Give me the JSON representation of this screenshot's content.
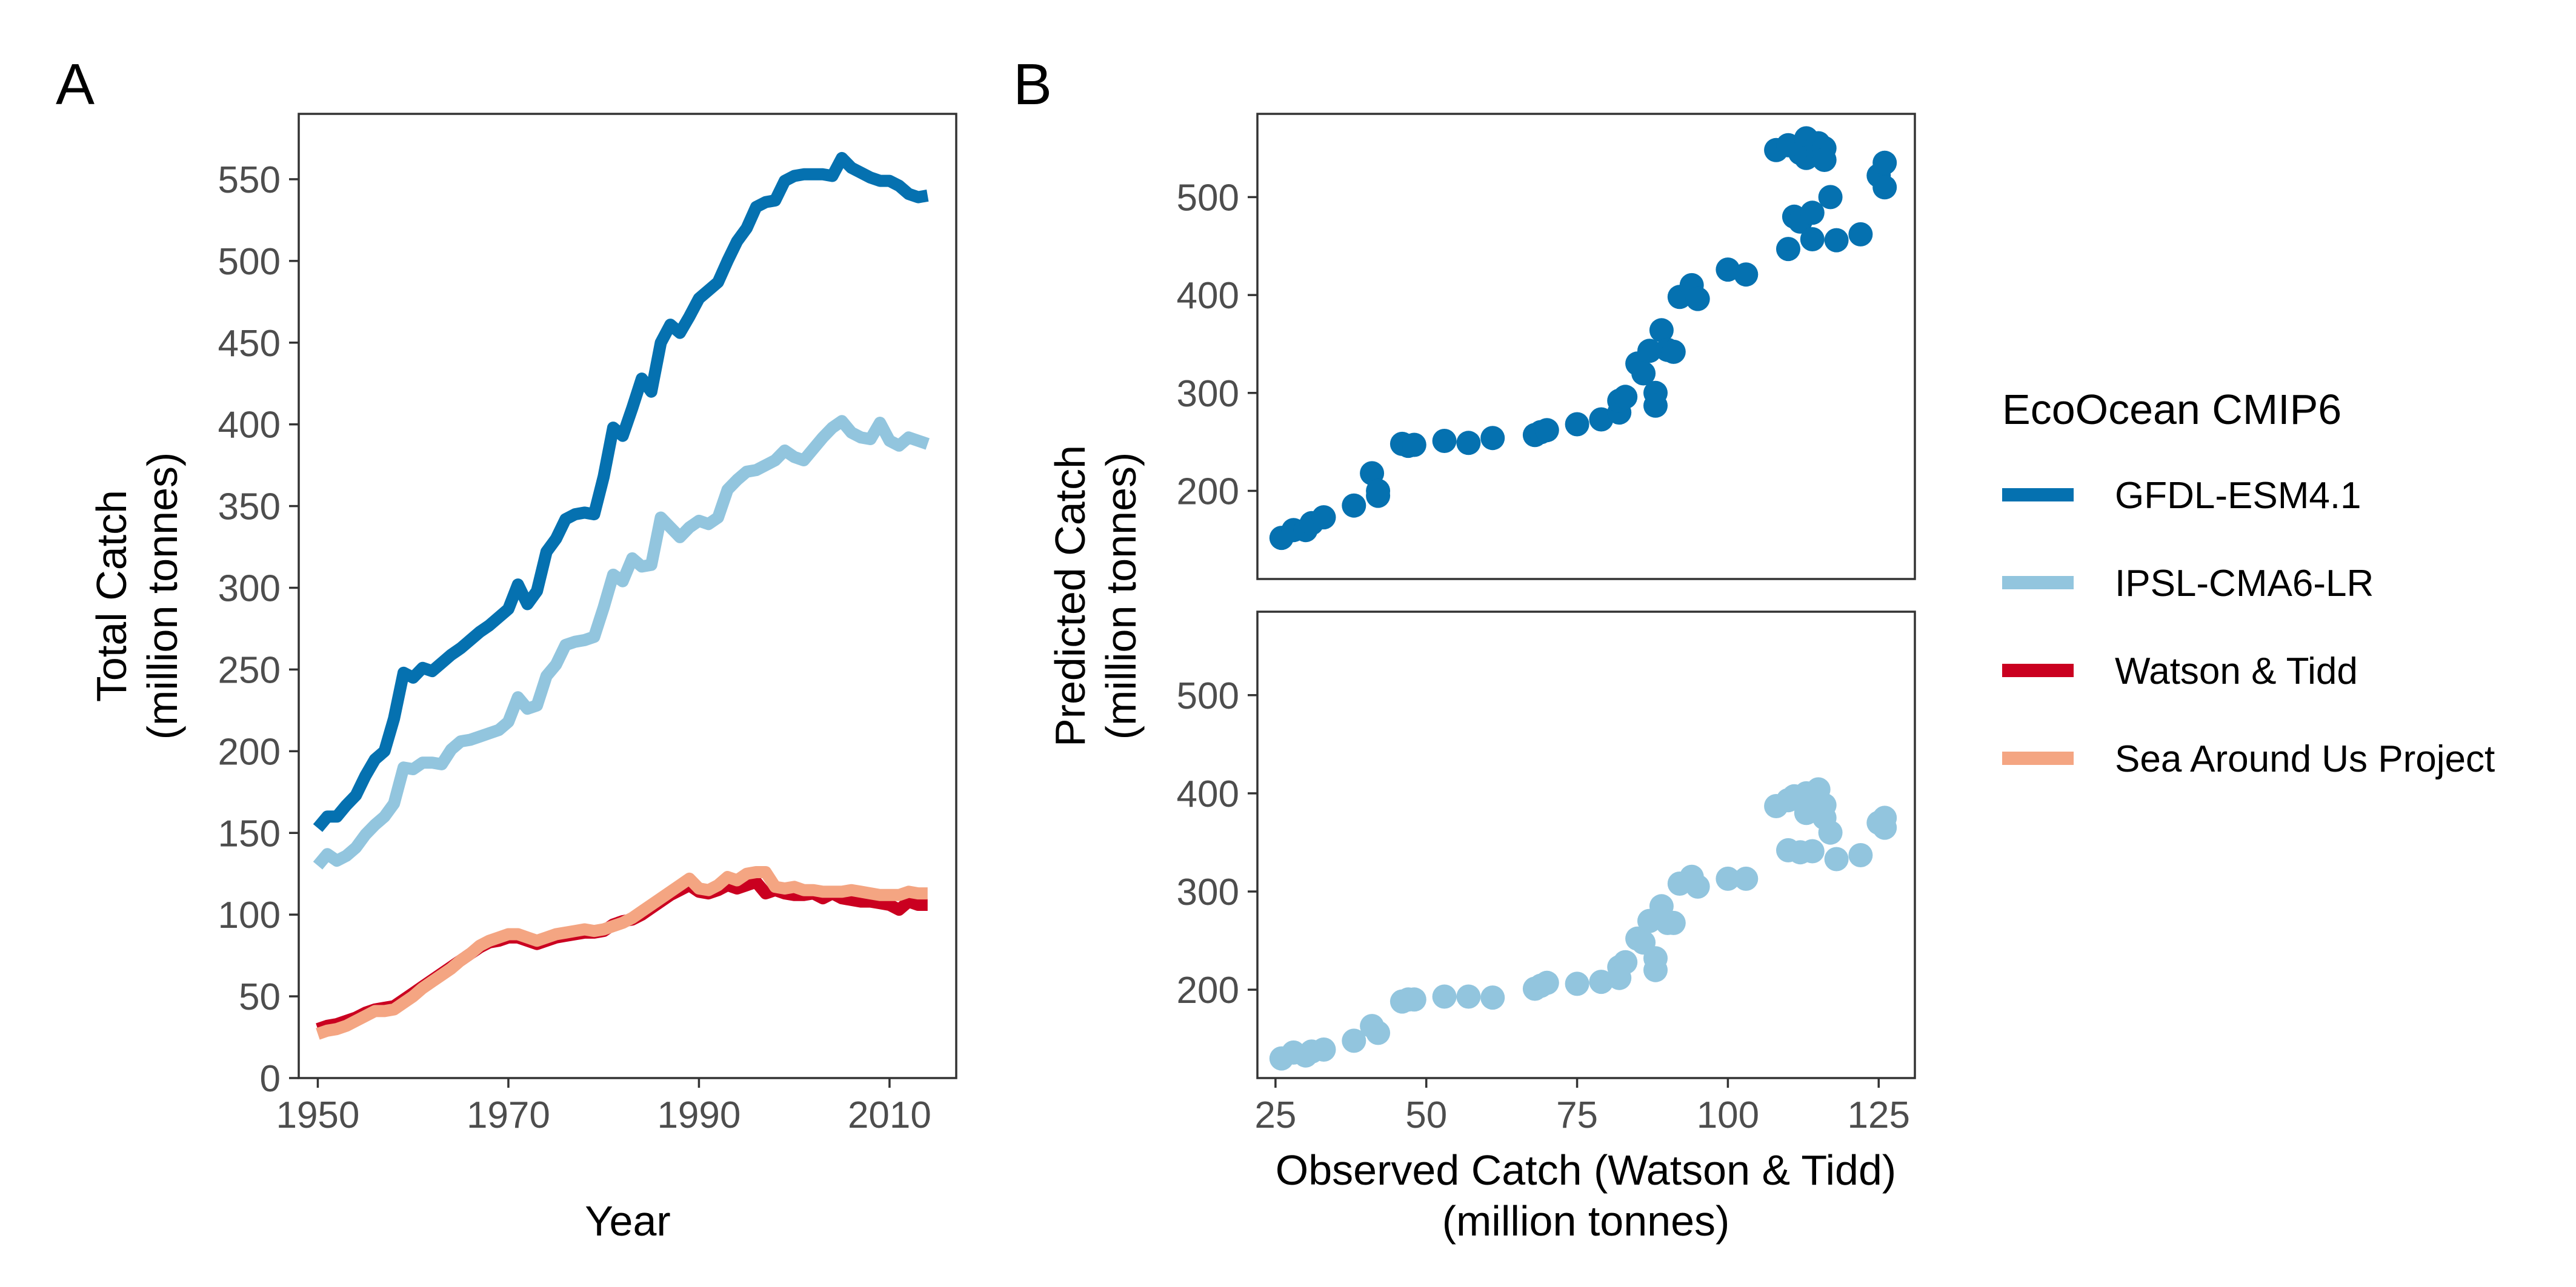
{
  "figure": {
    "panel_a_tag": "A",
    "panel_b_tag": "B"
  },
  "legend": {
    "title": "EcoOcean CMIP6",
    "items": [
      {
        "label": "GFDL-ESM4.1",
        "color": "#0571b0"
      },
      {
        "label": "IPSL-CMA6-LR",
        "color": "#92c5de"
      },
      {
        "label": "Watson & Tidd",
        "color": "#ca0020"
      },
      {
        "label": "Sea Around Us Project",
        "color": "#f4a582"
      }
    ]
  },
  "chart_data": [
    {
      "type": "line",
      "panel": "A",
      "xlabel": "Year",
      "ylabel": "Total Catch",
      "ylabel_line2": "(million tonnes)",
      "xlim": [
        1948,
        2017
      ],
      "ylim": [
        0,
        590
      ],
      "xticks": [
        1950,
        1970,
        1990,
        2010
      ],
      "yticks": [
        0,
        50,
        100,
        150,
        200,
        250,
        300,
        350,
        400,
        450,
        500,
        550
      ],
      "x": [
        1950,
        1951,
        1952,
        1953,
        1954,
        1955,
        1956,
        1957,
        1958,
        1959,
        1960,
        1961,
        1962,
        1963,
        1964,
        1965,
        1966,
        1967,
        1968,
        1969,
        1970,
        1971,
        1972,
        1973,
        1974,
        1975,
        1976,
        1977,
        1978,
        1979,
        1980,
        1981,
        1982,
        1983,
        1984,
        1985,
        1986,
        1987,
        1988,
        1989,
        1990,
        1991,
        1992,
        1993,
        1994,
        1995,
        1996,
        1997,
        1998,
        1999,
        2000,
        2001,
        2002,
        2003,
        2004,
        2005,
        2006,
        2007,
        2008,
        2009,
        2010,
        2011,
        2012,
        2013,
        2014
      ],
      "series": [
        {
          "name": "GFDL-ESM4.1",
          "color": "#0571b0",
          "values": [
            153,
            160,
            160,
            167,
            173,
            185,
            195,
            200,
            220,
            248,
            245,
            251,
            249,
            254,
            259,
            263,
            268,
            273,
            277,
            282,
            287,
            302,
            290,
            298,
            322,
            330,
            342,
            345,
            346,
            345,
            368,
            398,
            393,
            410,
            428,
            420,
            450,
            461,
            456,
            466,
            477,
            482,
            487,
            500,
            512,
            520,
            533,
            536,
            537,
            549,
            552,
            553,
            553,
            553,
            552,
            563,
            557,
            554,
            551,
            549,
            549,
            546,
            541,
            539,
            540
          ]
        },
        {
          "name": "IPSL-CMA6-LR",
          "color": "#92c5de",
          "values": [
            130,
            137,
            133,
            136,
            141,
            149,
            155,
            160,
            168,
            190,
            189,
            193,
            193,
            192,
            201,
            206,
            207,
            209,
            211,
            213,
            218,
            233,
            226,
            228,
            246,
            253,
            265,
            267,
            268,
            270,
            288,
            308,
            304,
            318,
            313,
            314,
            343,
            337,
            331,
            337,
            341,
            339,
            343,
            360,
            366,
            371,
            372,
            375,
            378,
            384,
            380,
            378,
            385,
            392,
            398,
            402,
            395,
            392,
            391,
            401,
            390,
            387,
            392,
            390,
            388
          ]
        },
        {
          "name": "Watson & Tidd",
          "color": "#ca0020",
          "values": [
            30,
            32,
            33,
            35,
            37,
            40,
            42,
            43,
            44,
            48,
            52,
            56,
            60,
            64,
            68,
            72,
            76,
            80,
            83,
            84,
            86,
            86,
            84,
            82,
            84,
            86,
            87,
            88,
            89,
            89,
            90,
            94,
            96,
            97,
            100,
            104,
            108,
            112,
            115,
            118,
            114,
            113,
            115,
            118,
            116,
            118,
            120,
            113,
            115,
            113,
            112,
            112,
            113,
            110,
            113,
            110,
            109,
            108,
            108,
            107,
            106,
            103,
            108,
            106,
            106
          ]
        },
        {
          "name": "Sea Around Us Project",
          "color": "#f4a582",
          "values": [
            27,
            29,
            30,
            32,
            35,
            38,
            41,
            41,
            42,
            46,
            50,
            55,
            59,
            63,
            67,
            72,
            76,
            81,
            84,
            86,
            88,
            88,
            86,
            84,
            86,
            88,
            89,
            90,
            91,
            90,
            91,
            93,
            95,
            98,
            102,
            106,
            110,
            114,
            118,
            122,
            116,
            115,
            118,
            123,
            121,
            125,
            126,
            126,
            117,
            116,
            117,
            115,
            115,
            114,
            114,
            114,
            115,
            114,
            113,
            112,
            112,
            112,
            114,
            113,
            113
          ]
        }
      ]
    },
    {
      "type": "scatter",
      "panel": "B-top",
      "series_name": "GFDL-ESM4.1",
      "color": "#0571b0",
      "ylabel": "Predicted Catch",
      "ylabel_line2": "(million tonnes)",
      "xlim": [
        22,
        131
      ],
      "ylim": [
        110,
        585
      ],
      "yticks": [
        200,
        300,
        400,
        500
      ],
      "points": [
        [
          26,
          152
        ],
        [
          28,
          160
        ],
        [
          30,
          160
        ],
        [
          31,
          167
        ],
        [
          33,
          173
        ],
        [
          38,
          185
        ],
        [
          41,
          218
        ],
        [
          42,
          195
        ],
        [
          42,
          200
        ],
        [
          46,
          248
        ],
        [
          47,
          246
        ],
        [
          48,
          247
        ],
        [
          53,
          251
        ],
        [
          57,
          249
        ],
        [
          61,
          254
        ],
        [
          68,
          257
        ],
        [
          69,
          260
        ],
        [
          70,
          262
        ],
        [
          75,
          268
        ],
        [
          79,
          273
        ],
        [
          82,
          280
        ],
        [
          82,
          292
        ],
        [
          83,
          296
        ],
        [
          85,
          330
        ],
        [
          86,
          320
        ],
        [
          87,
          343
        ],
        [
          88,
          300
        ],
        [
          88,
          287
        ],
        [
          89,
          364
        ],
        [
          90,
          344
        ],
        [
          91,
          342
        ],
        [
          92,
          398
        ],
        [
          94,
          410
        ],
        [
          95,
          396
        ],
        [
          100,
          426
        ],
        [
          103,
          421
        ],
        [
          108,
          548
        ],
        [
          110,
          447
        ],
        [
          110,
          553
        ],
        [
          111,
          480
        ],
        [
          112,
          545
        ],
        [
          112,
          475
        ],
        [
          113,
          560
        ],
        [
          113,
          540
        ],
        [
          114,
          484
        ],
        [
          114,
          457
        ],
        [
          115,
          555
        ],
        [
          115,
          545
        ],
        [
          116,
          550
        ],
        [
          116,
          538
        ],
        [
          117,
          500
        ],
        [
          118,
          456
        ],
        [
          122,
          462
        ],
        [
          125,
          522
        ],
        [
          126,
          510
        ],
        [
          126,
          535
        ]
      ]
    },
    {
      "type": "scatter",
      "panel": "B-bottom",
      "series_name": "IPSL-CMA6-LR",
      "color": "#92c5de",
      "xlabel": "Observed Catch (Watson & Tidd)",
      "xlabel_line2": "(million tonnes)",
      "xlim": [
        22,
        131
      ],
      "ylim": [
        110,
        585
      ],
      "xticks": [
        25,
        50,
        75,
        100,
        125
      ],
      "yticks": [
        200,
        300,
        400,
        500
      ],
      "points": [
        [
          26,
          130
        ],
        [
          28,
          136
        ],
        [
          30,
          133
        ],
        [
          31,
          137
        ],
        [
          33,
          139
        ],
        [
          38,
          148
        ],
        [
          41,
          163
        ],
        [
          42,
          156
        ],
        [
          46,
          188
        ],
        [
          47,
          190
        ],
        [
          48,
          190
        ],
        [
          53,
          193
        ],
        [
          57,
          193
        ],
        [
          61,
          192
        ],
        [
          68,
          201
        ],
        [
          69,
          204
        ],
        [
          70,
          207
        ],
        [
          75,
          206
        ],
        [
          79,
          208
        ],
        [
          82,
          212
        ],
        [
          82,
          223
        ],
        [
          83,
          228
        ],
        [
          85,
          252
        ],
        [
          86,
          248
        ],
        [
          87,
          270
        ],
        [
          88,
          232
        ],
        [
          88,
          220
        ],
        [
          89,
          285
        ],
        [
          90,
          268
        ],
        [
          91,
          268
        ],
        [
          92,
          308
        ],
        [
          94,
          315
        ],
        [
          95,
          305
        ],
        [
          100,
          313
        ],
        [
          103,
          313
        ],
        [
          108,
          387
        ],
        [
          110,
          342
        ],
        [
          110,
          393
        ],
        [
          111,
          397
        ],
        [
          112,
          340
        ],
        [
          113,
          400
        ],
        [
          113,
          380
        ],
        [
          114,
          341
        ],
        [
          115,
          404
        ],
        [
          115,
          392
        ],
        [
          116,
          388
        ],
        [
          116,
          375
        ],
        [
          117,
          360
        ],
        [
          118,
          333
        ],
        [
          122,
          337
        ],
        [
          125,
          370
        ],
        [
          126,
          365
        ],
        [
          126,
          375
        ]
      ]
    }
  ]
}
